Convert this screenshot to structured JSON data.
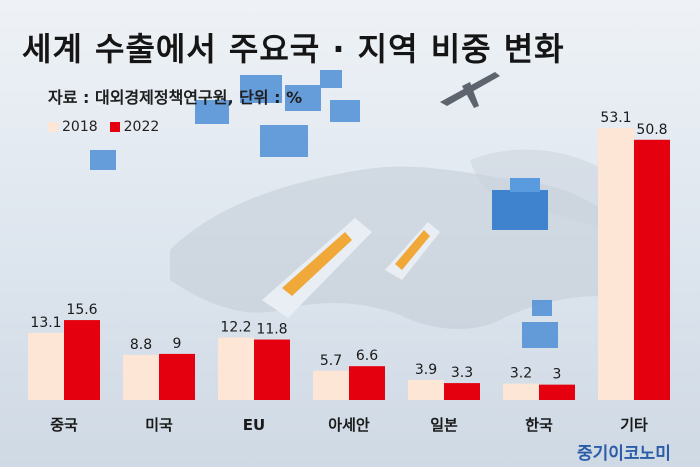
{
  "colors": {
    "series_2018": "#fde6d6",
    "series_2022": "#e4000f",
    "brand": "#2a5ca8"
  },
  "brand": "중기이코노미",
  "chart_data": {
    "type": "bar",
    "title": "세계 수출에서 주요국 · 지역 비중 변화",
    "subtitle": "자료 : 대외경제정책연구원, 단위 : %",
    "categories": [
      "중국",
      "미국",
      "EU",
      "아세안",
      "일본",
      "한국",
      "기타"
    ],
    "series": [
      {
        "name": "2018",
        "values": [
          13.1,
          8.8,
          12.2,
          5.7,
          3.9,
          3.2,
          53.1
        ],
        "labels": [
          "13.1",
          "8.8",
          "12.2",
          "5.7",
          "3.9",
          "3.2",
          "53.1"
        ]
      },
      {
        "name": "2022",
        "values": [
          15.6,
          9,
          11.8,
          6.6,
          3.3,
          3,
          50.8
        ],
        "labels": [
          "15.6",
          "9",
          "11.8",
          "6.6",
          "3.3",
          "3",
          "50.8"
        ]
      }
    ],
    "legend_position": "top-left",
    "grid": false,
    "ylim": [
      0,
      53.1
    ]
  }
}
